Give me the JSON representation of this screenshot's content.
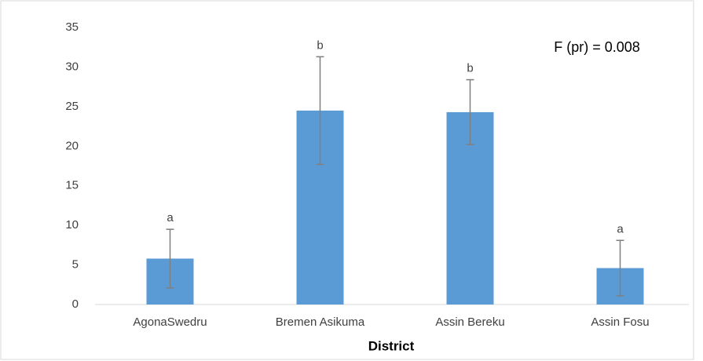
{
  "chart_data": {
    "type": "bar",
    "x_label": "District",
    "annotation": "F (pr) = 0.008",
    "categories": [
      "AgonaSwedru",
      "Bremen Asikuma",
      "Assin Bereku",
      "Assin Fosu"
    ],
    "values": [
      5.8,
      24.5,
      24.3,
      4.6
    ],
    "errors": [
      3.7,
      6.8,
      4.1,
      3.5
    ],
    "group_letters": [
      "a",
      "b",
      "b",
      "a"
    ],
    "color": "#5b9bd5",
    "error_color": "#7f7f7f",
    "ylim": [
      0,
      35
    ],
    "yticks": [
      0,
      5,
      10,
      15,
      20,
      25,
      30,
      35
    ],
    "grid": false
  }
}
